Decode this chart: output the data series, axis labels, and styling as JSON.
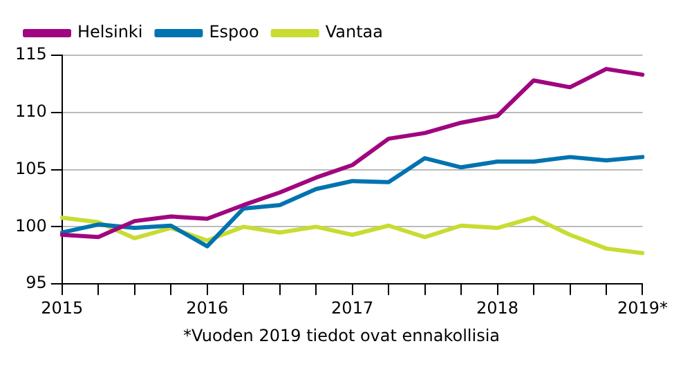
{
  "chart_data": {
    "type": "line",
    "categories": [
      "2015",
      null,
      null,
      null,
      "2016",
      null,
      null,
      null,
      "2017",
      null,
      null,
      null,
      "2018",
      null,
      null,
      null,
      "2019*"
    ],
    "series": [
      {
        "name": "Helsinki",
        "color": "#a0067f",
        "values": [
          99.3,
          99.1,
          100.5,
          100.9,
          100.7,
          101.9,
          103.0,
          104.3,
          105.4,
          107.7,
          108.2,
          109.1,
          109.7,
          112.8,
          112.2,
          113.8,
          113.3
        ]
      },
      {
        "name": "Espoo",
        "color": "#0073b0",
        "values": [
          99.5,
          100.2,
          99.9,
          100.1,
          98.3,
          101.6,
          101.9,
          103.3,
          104.0,
          103.9,
          106.0,
          105.2,
          105.7,
          105.7,
          106.1,
          105.8,
          106.1
        ]
      },
      {
        "name": "Vantaa",
        "color": "#c8dc32",
        "values": [
          100.8,
          100.4,
          99.0,
          99.9,
          98.8,
          100.0,
          99.5,
          100.0,
          99.3,
          100.1,
          99.1,
          100.1,
          99.9,
          100.8,
          99.3,
          98.1,
          97.7
        ]
      }
    ],
    "ylim": [
      95,
      115
    ],
    "yticks": [
      95,
      100,
      105,
      110,
      115
    ],
    "grid": "y",
    "legend": "top left",
    "marker": "none",
    "line_style": "solid",
    "annotations": [
      "*Vuoden 2019 tiedot ovat ennakollisia"
    ]
  }
}
